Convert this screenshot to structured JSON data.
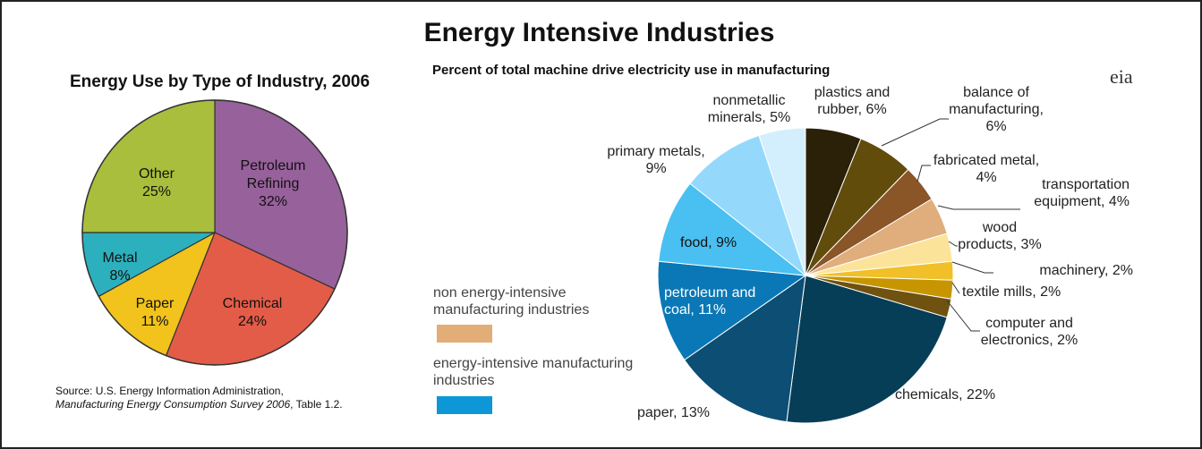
{
  "title": "Energy Intensive Industries",
  "logo": "eia",
  "source": {
    "prefix": "Source: U.S. Energy Information Administration,",
    "survey": "Manufacturing Energy Consumption Survey 2006",
    "suffix": ", Table 1.2."
  },
  "legend": [
    {
      "label": "non energy-intensive manufacturing industries",
      "color": "#e3ad78"
    },
    {
      "label": "energy-intensive manufacturing industries",
      "color": "#0e97d6"
    }
  ],
  "chart_data": [
    {
      "type": "pie",
      "title": "Energy Use by Type of Industry, 2006",
      "slices": [
        {
          "label": "Petroleum Refining",
          "value": 32,
          "pct": "32%",
          "color": "#97619b"
        },
        {
          "label": "Chemical",
          "value": 24,
          "pct": "24%",
          "color": "#e35c48"
        },
        {
          "label": "Paper",
          "value": 11,
          "pct": "11%",
          "color": "#f1c31c"
        },
        {
          "label": "Metal",
          "value": 8,
          "pct": "8%",
          "color": "#2db0bd"
        },
        {
          "label": "Other",
          "value": 25,
          "pct": "25%",
          "color": "#a9be3c"
        }
      ]
    },
    {
      "type": "pie",
      "title": "Percent of total machine drive electricity use in manufacturing",
      "slices": [
        {
          "label": "plastics and rubber, 6%",
          "value": 6,
          "color": "#2b2008"
        },
        {
          "label": "balance of manufacturing, 6%",
          "value": 6,
          "color": "#614c0b"
        },
        {
          "label": "fabricated metal, 4%",
          "value": 4,
          "color": "#8a5527"
        },
        {
          "label": "transportation equipment, 4%",
          "value": 4,
          "color": "#e0ad7c"
        },
        {
          "label": "wood products, 3%",
          "value": 3,
          "color": "#fbe49a"
        },
        {
          "label": "machinery, 2%",
          "value": 2,
          "color": "#f1bf28"
        },
        {
          "label": "textile mills, 2%",
          "value": 2,
          "color": "#c69500"
        },
        {
          "label": "computer and electronics, 2%",
          "value": 2,
          "color": "#6f5210"
        },
        {
          "label": "chemicals, 22%",
          "value": 22,
          "color": "#063e58"
        },
        {
          "label": "paper, 13%",
          "value": 13,
          "color": "#0c4e74"
        },
        {
          "label": "petroleum and coal, 11%",
          "value": 11,
          "color": "#0a78b6"
        },
        {
          "label": "food, 9%",
          "value": 9,
          "color": "#49c0f1"
        },
        {
          "label": "primary metals, 9%",
          "value": 9,
          "color": "#94d9fb"
        },
        {
          "label": "nonmetallic minerals, 5%",
          "value": 5,
          "color": "#d3effd"
        }
      ]
    }
  ]
}
